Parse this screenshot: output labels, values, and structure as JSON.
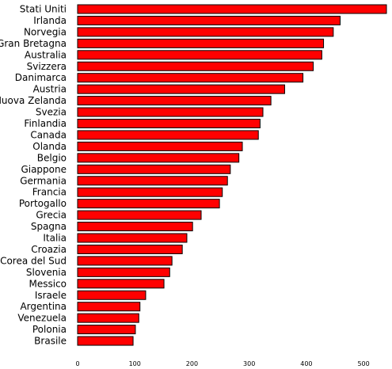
{
  "chart_data": {
    "type": "bar",
    "orientation": "horizontal",
    "categories": [
      "Stati Uniti",
      "Irlanda",
      "Norvegia",
      "Gran Bretagna",
      "Australia",
      "Svizzera",
      "Danimarca",
      "Austria",
      "Nuova Zelanda",
      "Svezia",
      "Finlandia",
      "Canada",
      "Olanda",
      "Belgio",
      "Giappone",
      "Germania",
      "Francia",
      "Portogallo",
      "Grecia",
      "Spagna",
      "Italia",
      "Croazia",
      "Corea del Sud",
      "Slovenia",
      "Messico",
      "Israele",
      "Argentina",
      "Venezuela",
      "Polonia",
      "Brasile"
    ],
    "values": [
      540,
      459,
      447,
      430,
      427,
      412,
      394,
      362,
      338,
      324,
      319,
      316,
      288,
      282,
      267,
      262,
      253,
      248,
      216,
      201,
      191,
      183,
      165,
      161,
      151,
      119,
      109,
      107,
      101,
      97
    ],
    "xlim": [
      0,
      540
    ],
    "xticks": [
      "0",
      "100",
      "200",
      "300",
      "400",
      "500"
    ],
    "title": "",
    "xlabel": "",
    "ylabel": "",
    "grid": false,
    "legend": "none",
    "colors": {
      "bar_fill": "#ff0000",
      "bar_stroke": "#000000",
      "axis": "#000000",
      "background": "#ffffff"
    }
  }
}
